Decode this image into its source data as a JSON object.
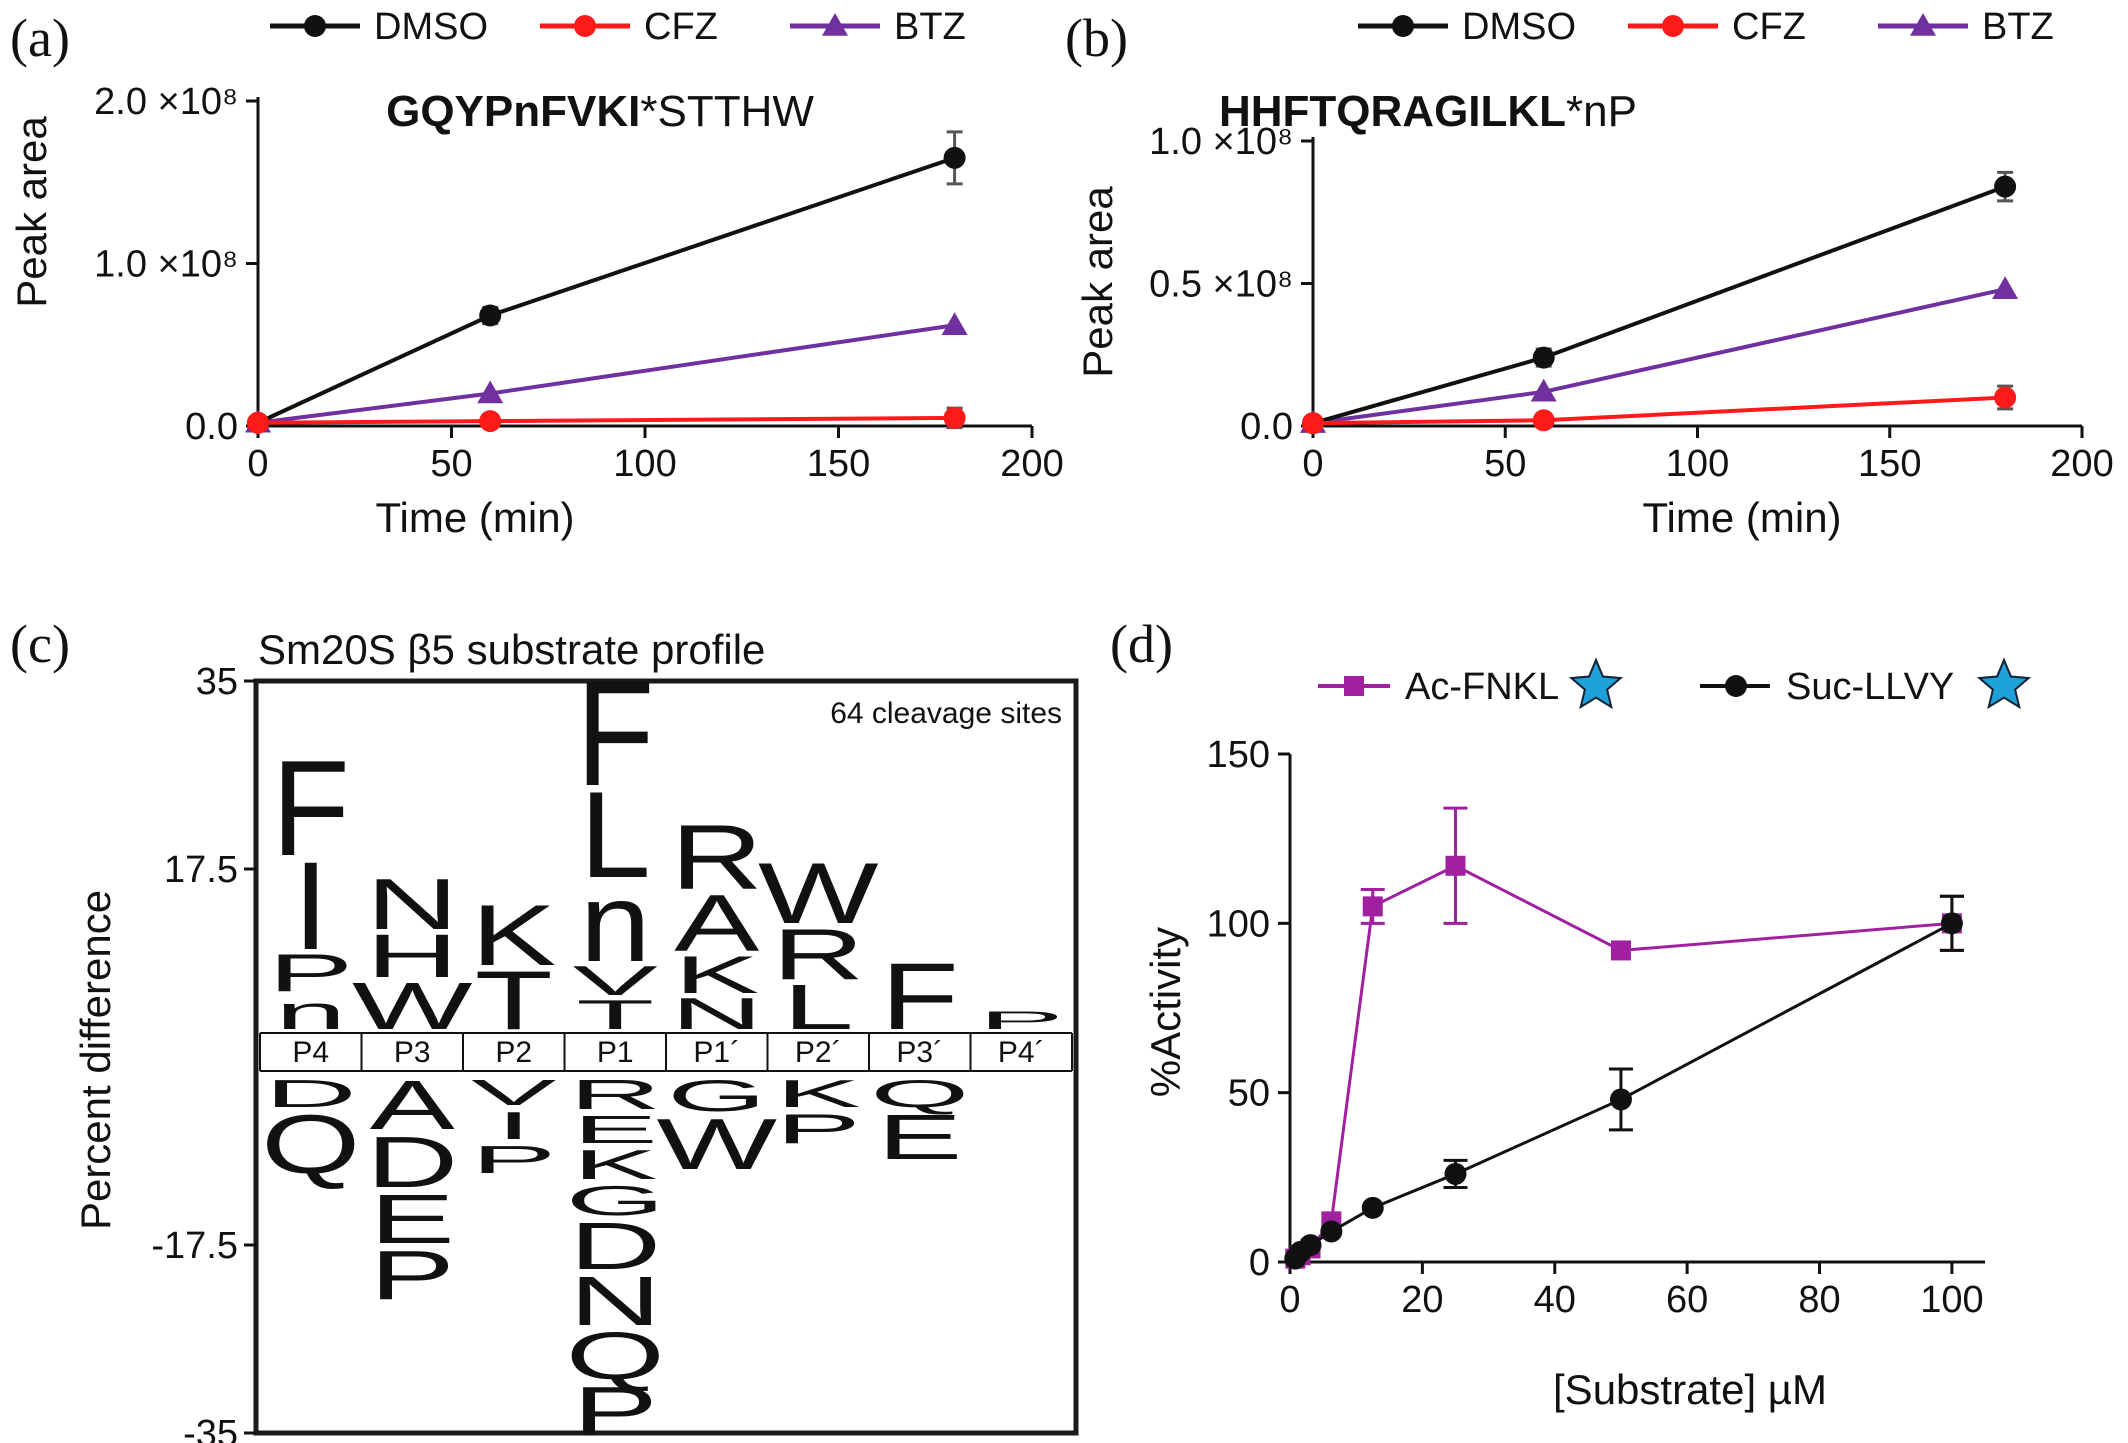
{
  "figure": {
    "panel_letters": [
      "(a)",
      "(b)",
      "(c)",
      "(d)"
    ],
    "colors": {
      "DMSO": "#111111",
      "CFZ": "#ff1a1a",
      "BTZ": "#7030a0",
      "ac_fnkl": "#a020a0",
      "suc_llvy": "#111111",
      "star": "#1ea0d8"
    }
  },
  "chart_data": [
    {
      "id": "a",
      "type": "line",
      "title_bold": "GQYPnFVKI",
      "title_rest": "*STTHW",
      "xlabel": "Time (min)",
      "ylabel": "Peak area",
      "xlim": [
        0,
        200
      ],
      "ylim": [
        0,
        200000000
      ],
      "xticks": [
        0,
        50,
        100,
        150,
        200
      ],
      "yticks": [
        0,
        100000000,
        200000000
      ],
      "ytick_labels": [
        "0.0",
        "1.0 ×10⁸",
        "2.0 ×10⁸"
      ],
      "legend": [
        "DMSO",
        "CFZ",
        "BTZ"
      ],
      "series": [
        {
          "name": "DMSO",
          "marker": "circle",
          "x": [
            0,
            60,
            180
          ],
          "y": [
            2000000,
            68000000,
            165000000
          ],
          "err": [
            0,
            5000000,
            16000000
          ]
        },
        {
          "name": "CFZ",
          "marker": "circle",
          "x": [
            0,
            60,
            180
          ],
          "y": [
            2000000,
            3000000,
            5000000
          ],
          "err": [
            0,
            0,
            6000000
          ]
        },
        {
          "name": "BTZ",
          "marker": "triangle",
          "x": [
            0,
            60,
            180
          ],
          "y": [
            2000000,
            20000000,
            62000000
          ],
          "err": [
            0,
            0,
            0
          ]
        }
      ]
    },
    {
      "id": "b",
      "type": "line",
      "title_bold": "HHFTQRAGILKL",
      "title_rest": "*nP",
      "xlabel": "Time (min)",
      "ylabel": "Peak area",
      "xlim": [
        0,
        200
      ],
      "ylim": [
        0,
        100000000
      ],
      "xticks": [
        0,
        50,
        100,
        150,
        200
      ],
      "yticks": [
        0,
        50000000,
        100000000
      ],
      "ytick_labels": [
        "0.0",
        "0.5 ×10⁸",
        "1.0 ×10⁸"
      ],
      "legend": [
        "DMSO",
        "CFZ",
        "BTZ"
      ],
      "series": [
        {
          "name": "DMSO",
          "marker": "circle",
          "x": [
            0,
            60,
            180
          ],
          "y": [
            1000000,
            24000000,
            84000000
          ],
          "err": [
            0,
            3000000,
            5000000
          ]
        },
        {
          "name": "CFZ",
          "marker": "circle",
          "x": [
            0,
            60,
            180
          ],
          "y": [
            1000000,
            2000000,
            10000000
          ],
          "err": [
            0,
            0,
            4000000
          ]
        },
        {
          "name": "BTZ",
          "marker": "triangle",
          "x": [
            0,
            60,
            180
          ],
          "y": [
            1000000,
            12000000,
            48000000
          ],
          "err": [
            0,
            0,
            0
          ]
        }
      ]
    },
    {
      "id": "c",
      "type": "table",
      "title": "Sm20S β5 substrate profile",
      "note": "64 cleavage sites",
      "ylabel": "Percent difference",
      "ylim": [
        -35,
        35
      ],
      "yticks": [
        35,
        17.5,
        -17.5,
        -35
      ],
      "ytick_labels": [
        "35",
        "17.5",
        "-17.5",
        "-35"
      ],
      "positions": [
        "P4",
        "P3",
        "P2",
        "P1",
        "P1´",
        "P2´",
        "P3´",
        "P4´"
      ],
      "above": [
        [
          "F",
          "I",
          "P",
          "n"
        ],
        [
          "N",
          "H",
          "W"
        ],
        [
          "K",
          "T"
        ],
        [
          "F",
          "L",
          "n",
          "V",
          "T"
        ],
        [
          "R",
          "A",
          "K",
          "N"
        ],
        [
          "W",
          "R",
          "L"
        ],
        [
          "F"
        ],
        [
          "P"
        ]
      ],
      "below": [
        [
          "D",
          "Q"
        ],
        [
          "A",
          "D",
          "E",
          "P"
        ],
        [
          "V",
          "I",
          "P"
        ],
        [
          "R",
          "E",
          "K",
          "G",
          "D",
          "N",
          "Q",
          "P"
        ],
        [
          "G",
          "W"
        ],
        [
          "K",
          "P"
        ],
        [
          "Q",
          "E"
        ],
        []
      ]
    },
    {
      "id": "d",
      "type": "line",
      "xlabel": "[Substrate] µM",
      "ylabel": "%Activity",
      "xlim": [
        0,
        105
      ],
      "ylim": [
        0,
        150
      ],
      "xticks": [
        0,
        20,
        40,
        60,
        80,
        100
      ],
      "yticks": [
        0,
        50,
        100,
        150
      ],
      "legend": [
        "Ac-FNKL",
        "Suc-LLVY"
      ],
      "series": [
        {
          "name": "Ac-FNKL",
          "marker": "square",
          "x": [
            0.8,
            1.6,
            3.1,
            6.25,
            12.5,
            25,
            50,
            100
          ],
          "y": [
            1,
            2,
            4,
            12,
            105,
            117,
            92,
            100
          ],
          "err": [
            0,
            0,
            0,
            0,
            5,
            17,
            0,
            8
          ]
        },
        {
          "name": "Suc-LLVY",
          "marker": "circle",
          "x": [
            0.8,
            1.6,
            3.1,
            6.25,
            12.5,
            25,
            50,
            100
          ],
          "y": [
            1,
            3,
            5,
            9,
            16,
            26,
            48,
            100
          ],
          "err": [
            0,
            0,
            0,
            0,
            0,
            4,
            9,
            8
          ]
        }
      ]
    }
  ]
}
